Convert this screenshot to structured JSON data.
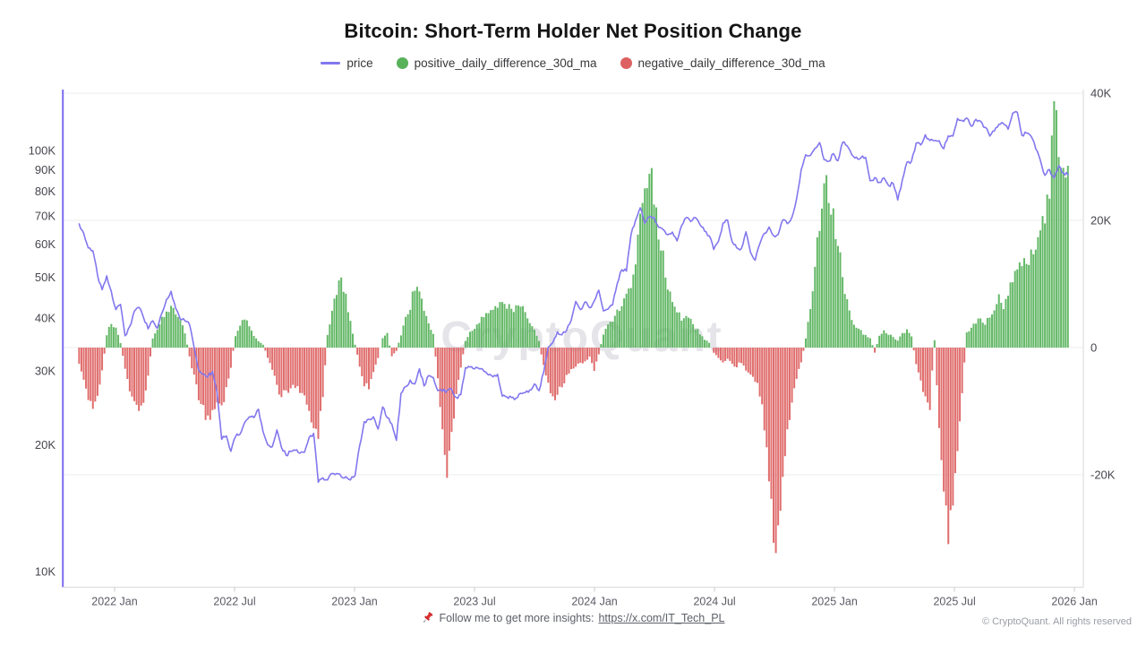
{
  "header": {
    "title": "Bitcoin: Short-Term Holder Net Position Change"
  },
  "legend": {
    "items": [
      {
        "label": "price",
        "marker": "line",
        "color": "#8277ee"
      },
      {
        "label": "positive_daily_difference_30d_ma",
        "marker": "dot",
        "color": "#57b25a"
      },
      {
        "label": "negative_daily_difference_30d_ma",
        "marker": "dot",
        "color": "#dd6161"
      }
    ]
  },
  "watermark": "CryptoQuant",
  "footer": {
    "pin_icon": "pushpin-icon",
    "text": "Follow me to get more insights:",
    "link_text": "https://x.com/IT_Tech_PL",
    "copyright": "© CryptoQuant. All rights reserved"
  },
  "chart_data": {
    "type": "combo",
    "title": "Bitcoin: Short-Term Holder Net Position Change",
    "x_start_date": "2021-11-08",
    "x_interval_days": 7,
    "x_tick_labels": [
      "2022 Jan",
      "2022 Jul",
      "2023 Jan",
      "2023 Jul",
      "2024 Jan",
      "2024 Jul",
      "2025 Jan",
      "2025 Jul",
      "2026 Jan"
    ],
    "left_axis": {
      "scale": "log",
      "unit": "USD",
      "tick_labels": [
        "100K",
        "90K",
        "80K",
        "70K",
        "60K",
        "50K",
        "40K",
        "30K",
        "20K",
        "10K"
      ],
      "tick_values_k": [
        100,
        90,
        80,
        70,
        60,
        50,
        40,
        30,
        20,
        10
      ]
    },
    "right_axis": {
      "scale": "linear",
      "unit": "BTC",
      "tick_labels": [
        "40K",
        "20K",
        "0",
        "-20K"
      ],
      "tick_values_k": [
        40,
        20,
        0,
        -20
      ],
      "range_k": [
        -37,
        40
      ]
    },
    "grid": "horizontal",
    "legend_position": "top",
    "series": [
      {
        "name": "price",
        "type": "line",
        "axis": "left",
        "color": "#8277ee",
        "values_usd_thousands": [
          66.9,
          63.6,
          58.7,
          57.8,
          50.6,
          46.7,
          50.4,
          46.3,
          41.9,
          43.1,
          36.3,
          38.2,
          41.5,
          42.4,
          40.1,
          37.7,
          39.4,
          37.8,
          41.1,
          44.3,
          46.3,
          42.2,
          39.7,
          39.4,
          38.6,
          34.1,
          30.1,
          29.4,
          29.0,
          29.9,
          26.6,
          20.6,
          21.0,
          19.3,
          20.9,
          21.2,
          22.6,
          23.3,
          23.2,
          24.3,
          21.5,
          20.0,
          19.8,
          21.7,
          19.7,
          18.9,
          19.3,
          19.4,
          19.1,
          19.2,
          20.8,
          21.3,
          16.3,
          16.7,
          16.5,
          17.1,
          17.1,
          16.8,
          16.8,
          16.5,
          16.9,
          19.9,
          22.7,
          23.0,
          23.3,
          21.8,
          24.6,
          23.2,
          22.4,
          20.5,
          26.5,
          27.5,
          28.5,
          27.9,
          30.3,
          27.6,
          29.2,
          28.9,
          26.9,
          26.8,
          26.9,
          27.1,
          25.9,
          26.3,
          30.5,
          30.6,
          30.3,
          30.3,
          29.9,
          29.3,
          29.0,
          29.4,
          26.1,
          26.0,
          25.9,
          25.8,
          26.5,
          26.6,
          27.0,
          27.9,
          26.9,
          29.7,
          34.1,
          35.0,
          37.1,
          36.5,
          37.4,
          39.5,
          43.8,
          41.9,
          43.7,
          42.3,
          43.9,
          46.6,
          41.6,
          42.0,
          43.0,
          48.3,
          52.1,
          51.7,
          63.1,
          68.3,
          73.1,
          67.2,
          69.6,
          69.4,
          65.7,
          64.9,
          63.1,
          64.0,
          61.0,
          66.3,
          69.3,
          67.8,
          69.3,
          66.7,
          64.3,
          62.7,
          58.2,
          60.8,
          67.2,
          68.3,
          60.7,
          58.7,
          58.5,
          64.1,
          57.3,
          54.9,
          60.0,
          63.6,
          65.8,
          62.8,
          63.2,
          68.4,
          67.0,
          69.5,
          76.7,
          89.9,
          97.7,
          97.3,
          101.2,
          104.4,
          95.1,
          94.3,
          98.3,
          94.5,
          104.5,
          102.6,
          97.7,
          96.5,
          96.1,
          96.3,
          84.7,
          86.2,
          84.0,
          86.1,
          82.6,
          83.5,
          76.3,
          85.2,
          93.8,
          94.3,
          104.1,
          103.1,
          109.0,
          105.6,
          105.6,
          105.5,
          101.0,
          108.3,
          108.2,
          119.1,
          117.9,
          119.4,
          114.2,
          118.6,
          117.4,
          113.5,
          108.2,
          111.2,
          115.4,
          115.8,
          112.3,
          122.6,
          123.2,
          108.7,
          110.0,
          108.1,
          101.0,
          94.8,
          87.3,
          90.1,
          86.0,
          92.0,
          88.5,
          87.6
        ]
      },
      {
        "name": "positive_daily_difference_30d_ma",
        "type": "bar",
        "axis": "right",
        "color": "#57b25a",
        "note": "positive values of net_position_change_30d_ma_thousands"
      },
      {
        "name": "negative_daily_difference_30d_ma",
        "type": "bar",
        "axis": "right",
        "color": "#dd6161",
        "note": "negative values of net_position_change_30d_ma_thousands"
      }
    ],
    "net_position_change_30d_ma_thousands": [
      -2.5,
      -5.5,
      -7.8,
      -8.7,
      -7.5,
      -4.0,
      2.0,
      3.9,
      3.0,
      0.8,
      -3.5,
      -7.0,
      -8.5,
      -10.0,
      -8.0,
      -4.5,
      1.5,
      3.0,
      4.5,
      5.5,
      6.8,
      5.5,
      4.2,
      2.5,
      -1.5,
      -4.5,
      -7.5,
      -9.5,
      -11.2,
      -10.0,
      -8.5,
      -9.5,
      -6.5,
      -3.0,
      2.0,
      3.8,
      4.6,
      3.5,
      1.8,
      1.0,
      0.5,
      -1.5,
      -3.2,
      -5.5,
      -8.5,
      -6.5,
      -7.0,
      -6.0,
      -7.5,
      -8.0,
      -9.5,
      -12.0,
      -13.8,
      -8.0,
      2.0,
      6.0,
      9.0,
      10.8,
      8.0,
      4.0,
      0.5,
      -3.0,
      -5.5,
      -6.8,
      -4.0,
      -1.5,
      1.5,
      2.2,
      -1.5,
      -0.5,
      2.0,
      4.5,
      6.5,
      9.5,
      8.2,
      6.0,
      4.0,
      2.0,
      -5.0,
      -12.0,
      -19.0,
      -14.0,
      -8.0,
      -3.0,
      1.0,
      2.5,
      3.2,
      4.0,
      4.8,
      5.4,
      6.0,
      6.6,
      7.2,
      6.6,
      5.8,
      6.2,
      6.8,
      5.2,
      4.0,
      3.0,
      1.0,
      -3.0,
      -6.0,
      -8.5,
      -7.5,
      -6.0,
      -4.5,
      -3.5,
      -3.0,
      -2.5,
      -2.0,
      -1.5,
      -3.5,
      -1.0,
      2.0,
      3.5,
      4.5,
      5.5,
      6.5,
      8.0,
      10.0,
      14.0,
      19.0,
      23.0,
      28.2,
      25.0,
      19.0,
      14.0,
      10.0,
      8.0,
      5.5,
      4.5,
      5.5,
      4.2,
      3.2,
      2.2,
      1.2,
      0.8,
      -0.8,
      -1.5,
      -2.2,
      -1.8,
      -2.6,
      -3.0,
      -2.2,
      -3.4,
      -4.0,
      -5.0,
      -7.0,
      -12.0,
      -22.0,
      -30.5,
      -28.0,
      -20.0,
      -13.0,
      -8.0,
      -5.0,
      -2.5,
      1.5,
      6.0,
      12.0,
      20.0,
      26.2,
      24.0,
      20.0,
      16.0,
      11.0,
      7.0,
      4.5,
      3.5,
      2.5,
      2.0,
      1.5,
      -0.8,
      2.0,
      2.8,
      2.2,
      1.6,
      1.2,
      2.2,
      2.8,
      1.6,
      -2.5,
      -5.5,
      -7.5,
      -9.2,
      1.2,
      -12.0,
      -24.0,
      -31.2,
      -26.0,
      -15.0,
      -7.0,
      2.5,
      3.2,
      3.8,
      4.6,
      3.6,
      5.2,
      6.2,
      7.6,
      6.6,
      8.6,
      10.2,
      12.2,
      13.6,
      12.2,
      14.6,
      16.2,
      18.2,
      20.5,
      24.0,
      37.2,
      30.5,
      27.0,
      26.0
    ]
  },
  "colors": {
    "price_line": "#8277ee",
    "left_axis_line": "#7b6cf0",
    "positive_bar": "#57b25a",
    "negative_bar": "#dd6161",
    "grid": "#ededf2",
    "axis_border": "#d9d9de",
    "watermark": "#e4e4e9"
  }
}
